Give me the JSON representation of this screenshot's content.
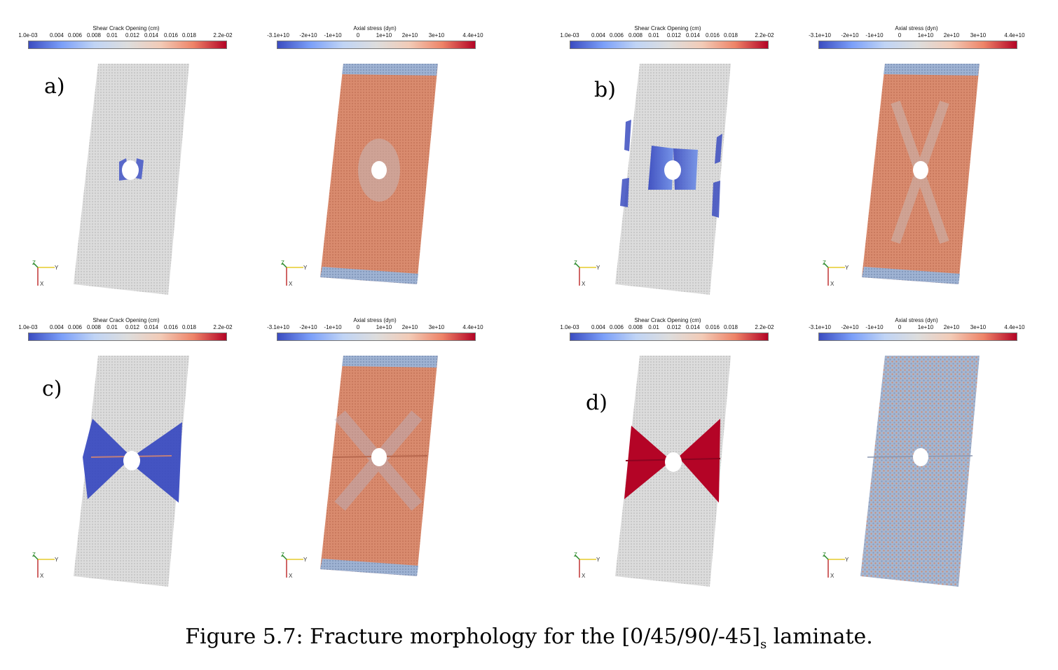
{
  "colorbars": {
    "shear": {
      "title": "Shear Crack Opening (cm)",
      "ticks": [
        "1.0e-03",
        "0.004",
        "0.006",
        "0.008",
        "0.01",
        "0.012",
        "0.014",
        "0.016",
        "0.018",
        "2.2e-02"
      ]
    },
    "axial": {
      "title": "Axial stress (dyn)",
      "ticks": [
        "-3.1e+10",
        "-2e+10",
        "-1e+10",
        "0",
        "1e+10",
        "2e+10",
        "3e+10",
        "4.4e+10"
      ]
    }
  },
  "panel_labels": {
    "a": "a)",
    "b": "b)",
    "c": "c)",
    "d": "d)"
  },
  "axes_triad": {
    "z": "Z",
    "y": "Y",
    "x": "X"
  },
  "caption": {
    "text": "Figure 5.7: Fracture morphology for the [0/45/90/-45]",
    "subscript": "s",
    "suffix": " laminate."
  },
  "colors": {
    "plate_gray": "#d8d8d8",
    "stress_red": "#d77a5c",
    "stress_blue": "#8fa6c8",
    "crack_blue": "#3b4cc0",
    "crack_red": "#b40426",
    "axis_z": "#2a8a2a",
    "axis_y": "#e0c000",
    "axis_x": "#b00000"
  }
}
